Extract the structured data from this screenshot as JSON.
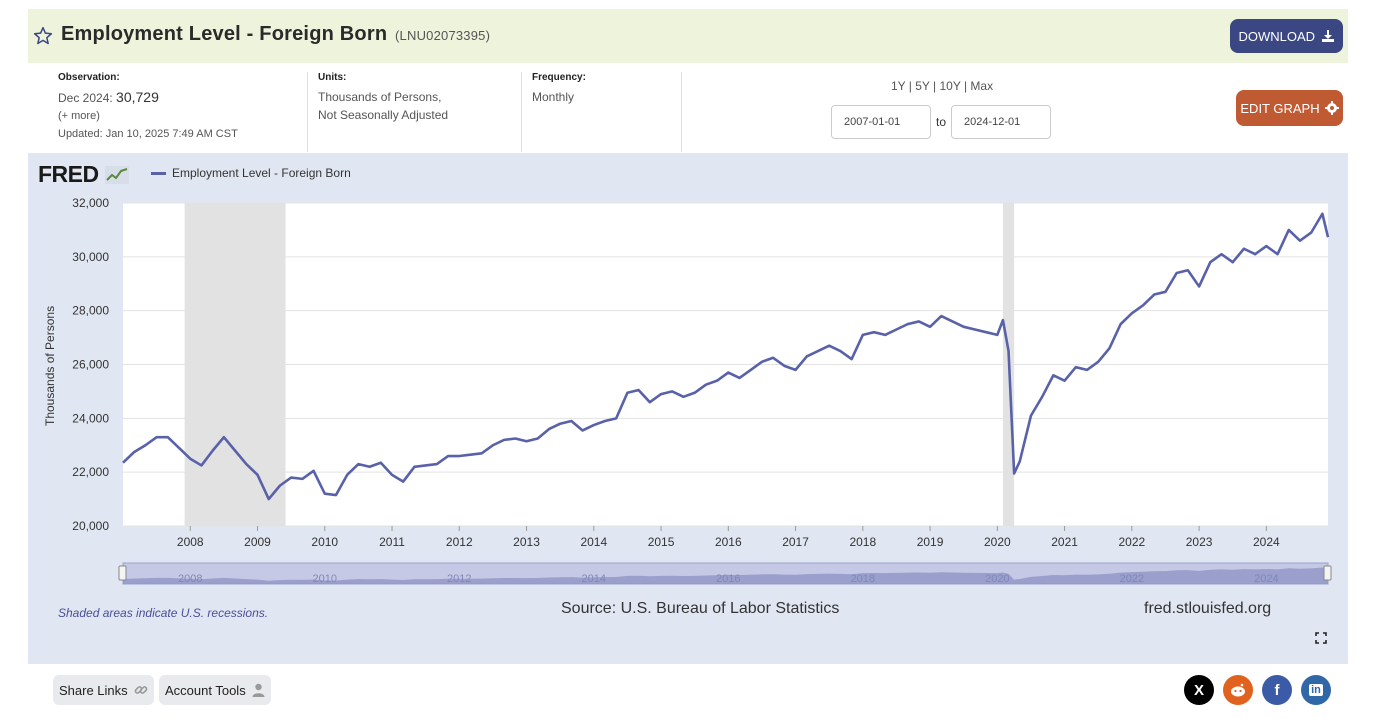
{
  "header": {
    "title": "Employment Level - Foreign Born",
    "series_id": "(LNU02073395)",
    "download_label": "DOWNLOAD"
  },
  "observation": {
    "label": "Observation:",
    "date": "Dec 2024:",
    "value": "30,729",
    "more": "(+ more)",
    "updated_label": "Updated:",
    "updated": "Jan 10, 2025 7:49 AM CST"
  },
  "units": {
    "label": "Units:",
    "line1": "Thousands of Persons,",
    "line2": "Not Seasonally Adjusted"
  },
  "frequency": {
    "label": "Frequency:",
    "value": "Monthly"
  },
  "range": {
    "links": "1Y | 5Y | 10Y | Max",
    "start": "2007-01-01",
    "to": "to",
    "end": "2024-12-01"
  },
  "edit_graph_label": "EDIT GRAPH",
  "graph": {
    "logo": "FRED",
    "recession_note": "Shaded areas indicate U.S. recessions.",
    "source": "Source: U.S. Bureau of Labor Statistics",
    "url": "fred.stlouisfed.org"
  },
  "footer": {
    "share_links": "Share Links",
    "account_tools": "Account Tools"
  },
  "colors": {
    "series": "#5961a8",
    "recession": "#e2e2e2",
    "download_btn": "#3a4782",
    "edit_btn": "#c05a32"
  },
  "chart_data": {
    "type": "line",
    "ylabel": "Thousands of Persons",
    "ylim": [
      20000,
      32000
    ],
    "yticks": [
      20000,
      22000,
      24000,
      26000,
      28000,
      30000,
      32000
    ],
    "ytick_labels": [
      "20,000",
      "22,000",
      "24,000",
      "26,000",
      "28,000",
      "30,000",
      "32,000"
    ],
    "xticks": [
      "2008",
      "2009",
      "2010",
      "2011",
      "2012",
      "2013",
      "2014",
      "2015",
      "2016",
      "2017",
      "2018",
      "2019",
      "2020",
      "2021",
      "2022",
      "2023",
      "2024"
    ],
    "xlim": [
      "2007-01-01",
      "2024-12-01"
    ],
    "grid": true,
    "legend": "top-left",
    "recessions": [
      [
        "2007-12-01",
        "2009-06-01"
      ],
      [
        "2020-02-01",
        "2020-04-01"
      ]
    ],
    "series": [
      {
        "name": "Employment Level - Foreign Born",
        "x": [
          "2007-01",
          "2007-03",
          "2007-05",
          "2007-07",
          "2007-09",
          "2007-11",
          "2008-01",
          "2008-03",
          "2008-05",
          "2008-07",
          "2008-09",
          "2008-11",
          "2009-01",
          "2009-03",
          "2009-05",
          "2009-07",
          "2009-09",
          "2009-11",
          "2010-01",
          "2010-03",
          "2010-05",
          "2010-07",
          "2010-09",
          "2010-11",
          "2011-01",
          "2011-03",
          "2011-05",
          "2011-07",
          "2011-09",
          "2011-11",
          "2012-01",
          "2012-03",
          "2012-05",
          "2012-07",
          "2012-09",
          "2012-11",
          "2013-01",
          "2013-03",
          "2013-05",
          "2013-07",
          "2013-09",
          "2013-11",
          "2014-01",
          "2014-03",
          "2014-05",
          "2014-07",
          "2014-09",
          "2014-11",
          "2015-01",
          "2015-03",
          "2015-05",
          "2015-07",
          "2015-09",
          "2015-11",
          "2016-01",
          "2016-03",
          "2016-05",
          "2016-07",
          "2016-09",
          "2016-11",
          "2017-01",
          "2017-03",
          "2017-05",
          "2017-07",
          "2017-09",
          "2017-11",
          "2018-01",
          "2018-03",
          "2018-05",
          "2018-07",
          "2018-09",
          "2018-11",
          "2019-01",
          "2019-03",
          "2019-05",
          "2019-07",
          "2019-09",
          "2019-11",
          "2020-01",
          "2020-02",
          "2020-03",
          "2020-04",
          "2020-05",
          "2020-07",
          "2020-09",
          "2020-11",
          "2021-01",
          "2021-03",
          "2021-05",
          "2021-07",
          "2021-09",
          "2021-11",
          "2022-01",
          "2022-03",
          "2022-05",
          "2022-07",
          "2022-09",
          "2022-11",
          "2023-01",
          "2023-03",
          "2023-05",
          "2023-07",
          "2023-09",
          "2023-11",
          "2024-01",
          "2024-03",
          "2024-05",
          "2024-07",
          "2024-09",
          "2024-11",
          "2024-12"
        ],
        "values": [
          22350,
          22750,
          23000,
          23300,
          23300,
          22900,
          22500,
          22250,
          22800,
          23300,
          22800,
          22300,
          21900,
          21000,
          21500,
          21800,
          21750,
          22050,
          21200,
          21150,
          21900,
          22300,
          22200,
          22350,
          21900,
          21650,
          22200,
          22250,
          22300,
          22600,
          22600,
          22650,
          22700,
          23000,
          23200,
          23250,
          23150,
          23250,
          23600,
          23800,
          23900,
          23550,
          23750,
          23900,
          24000,
          24950,
          25050,
          24600,
          24900,
          25000,
          24800,
          24950,
          25250,
          25400,
          25700,
          25500,
          25800,
          26100,
          26250,
          25950,
          25800,
          26300,
          26500,
          26700,
          26500,
          26200,
          27100,
          27200,
          27100,
          27300,
          27500,
          27600,
          27400,
          27800,
          27600,
          27400,
          27300,
          27200,
          27100,
          27650,
          26500,
          21950,
          22400,
          24100,
          24800,
          25600,
          25400,
          25900,
          25800,
          26100,
          26600,
          27500,
          27900,
          28200,
          28600,
          28700,
          29400,
          29500,
          28900,
          29800,
          30100,
          29800,
          30300,
          30100,
          30400,
          30100,
          31000,
          30600,
          30900,
          31600,
          30729
        ]
      }
    ]
  }
}
